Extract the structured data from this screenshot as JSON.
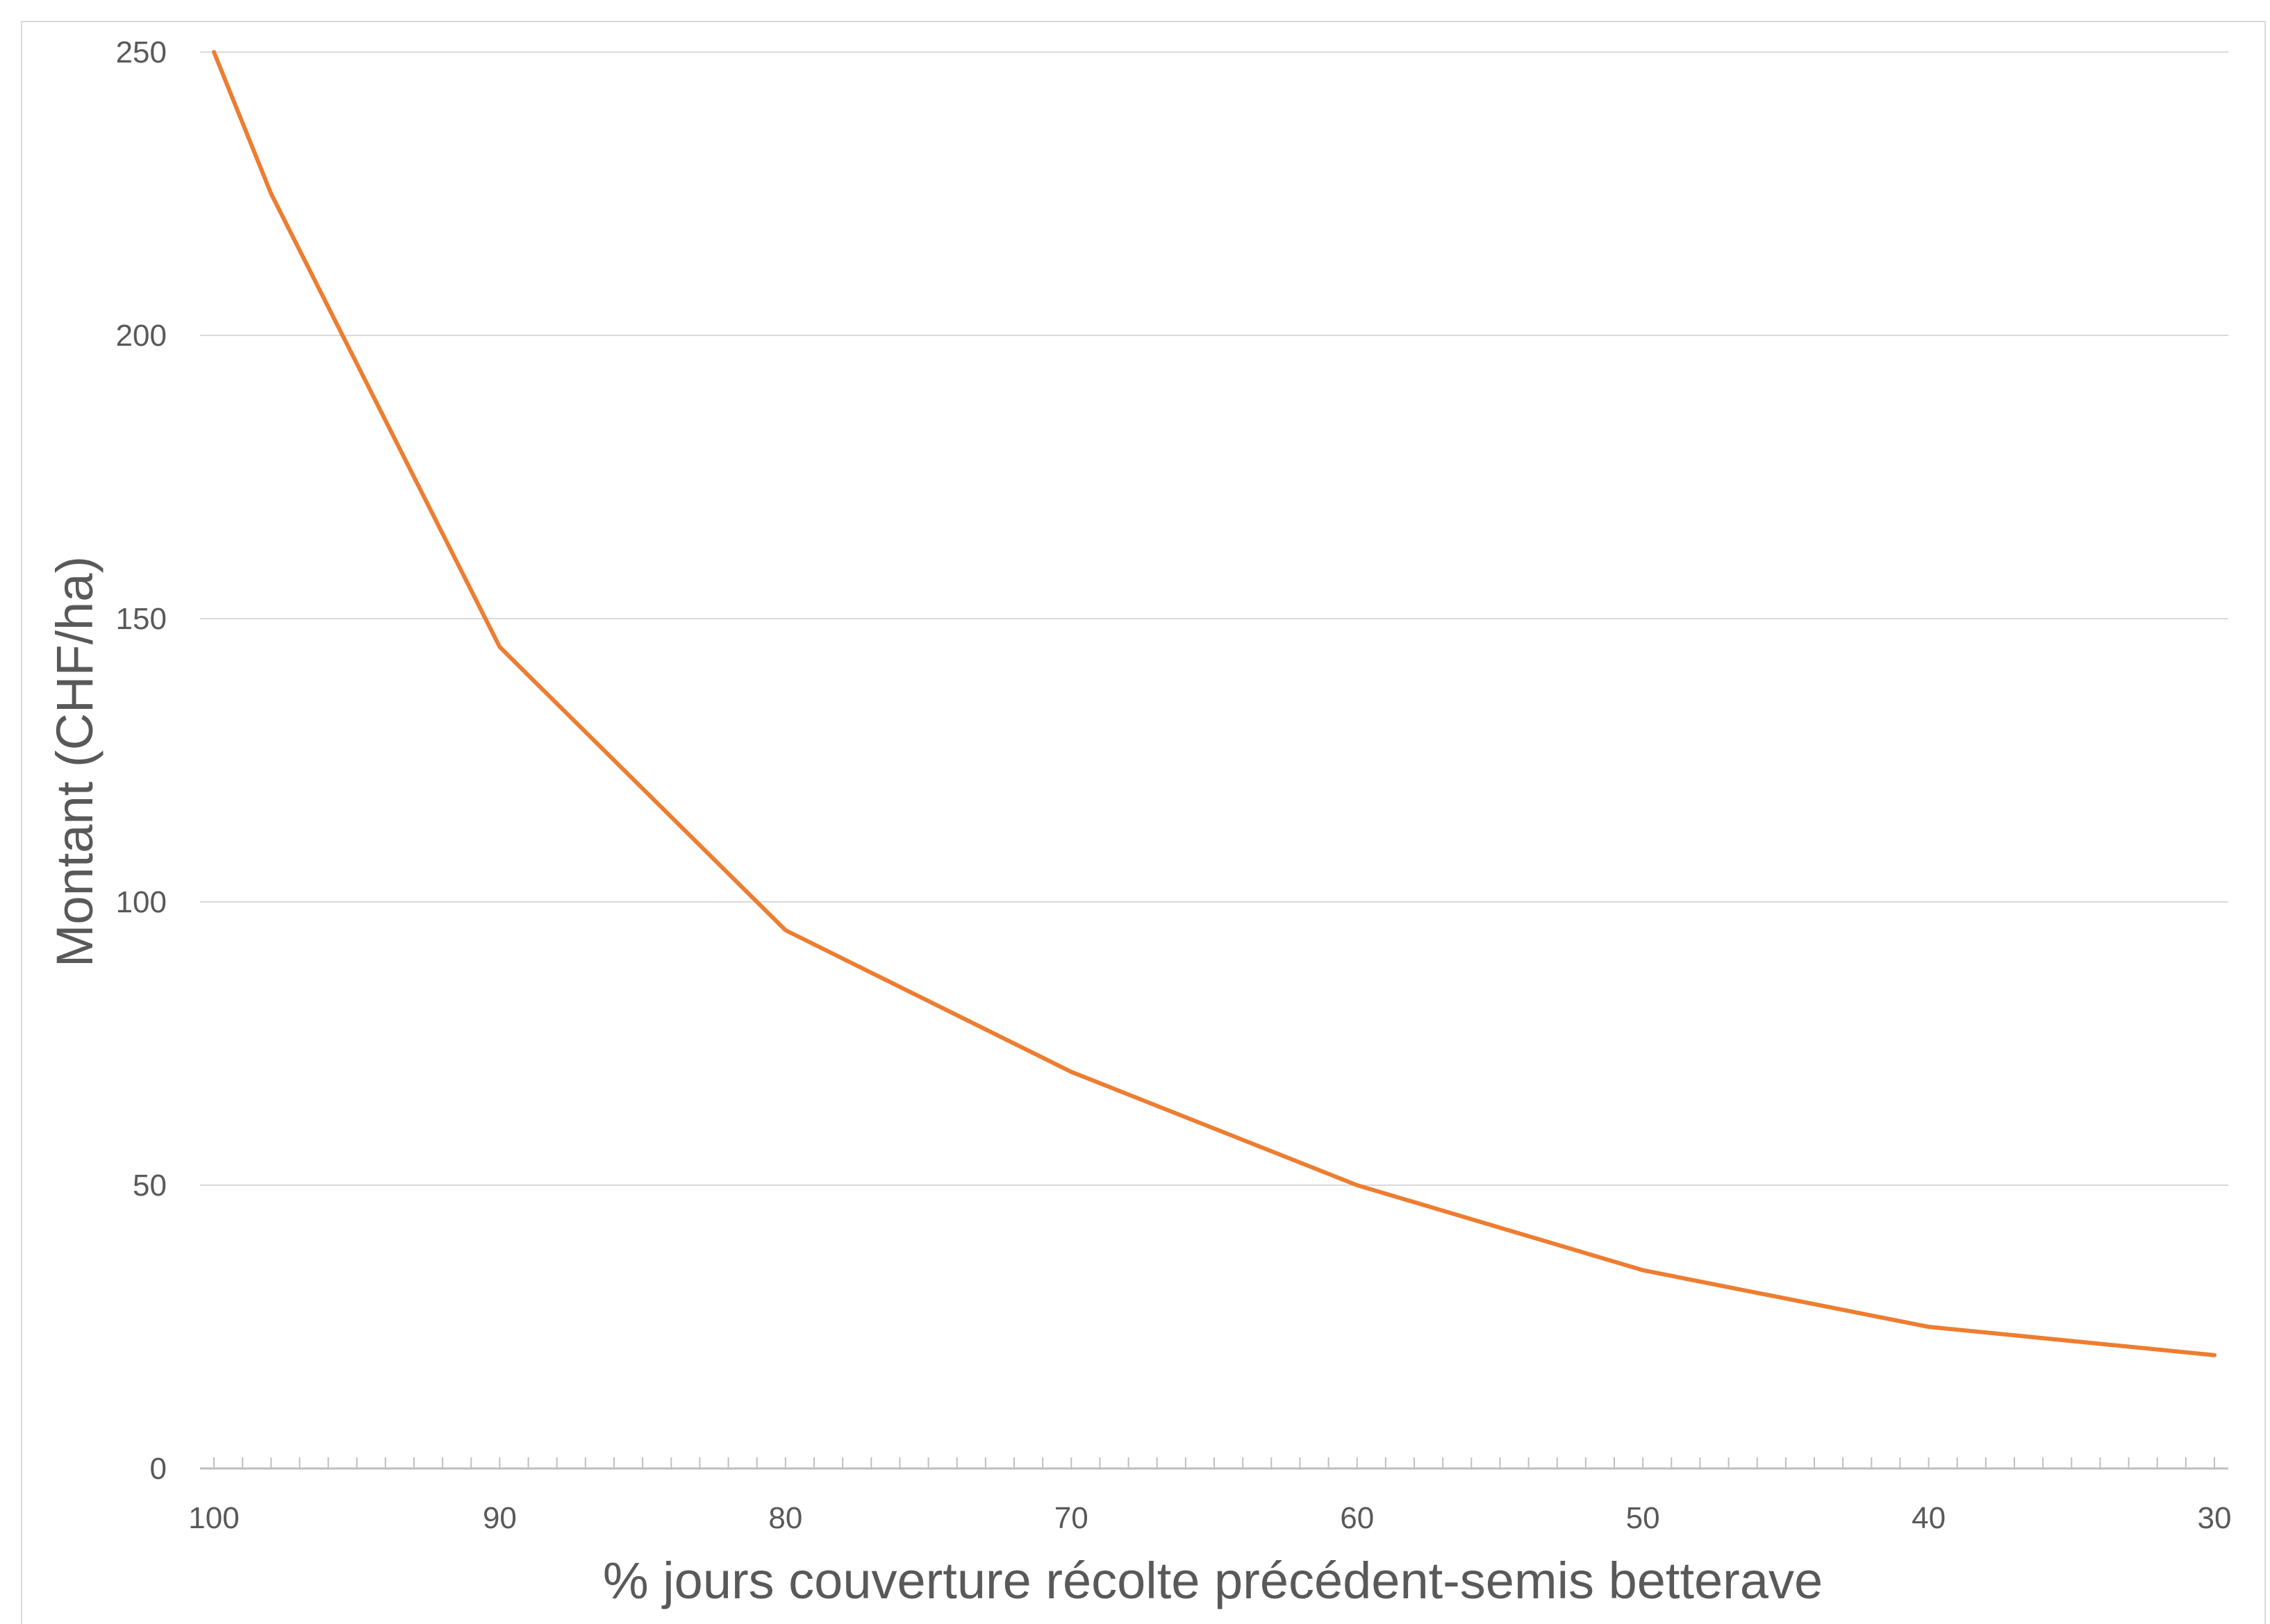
{
  "chart_data": {
    "type": "line",
    "title": "",
    "xlabel": "% jours couverture récolte précédent-semis betterave",
    "ylabel": "Montant (CHF/ha)",
    "x_reversed": true,
    "xlim": [
      100,
      30
    ],
    "ylim": [
      0,
      250
    ],
    "x_ticks": [
      "100",
      "90",
      "80",
      "70",
      "60",
      "50",
      "40",
      "30"
    ],
    "y_ticks": [
      "0",
      "50",
      "100",
      "150",
      "200",
      "250"
    ],
    "grid": "horizontal",
    "legend": "none",
    "colors": {
      "line": "#ED7D31",
      "grid": "#d9d9d9",
      "axis": "#bfbfbf",
      "text": "#595959"
    },
    "series": [
      {
        "x": [
          100,
          98,
          90,
          80,
          70,
          60,
          50,
          40,
          30
        ],
        "y": [
          250,
          225,
          145,
          95,
          70,
          50,
          35,
          25,
          20
        ]
      }
    ]
  }
}
